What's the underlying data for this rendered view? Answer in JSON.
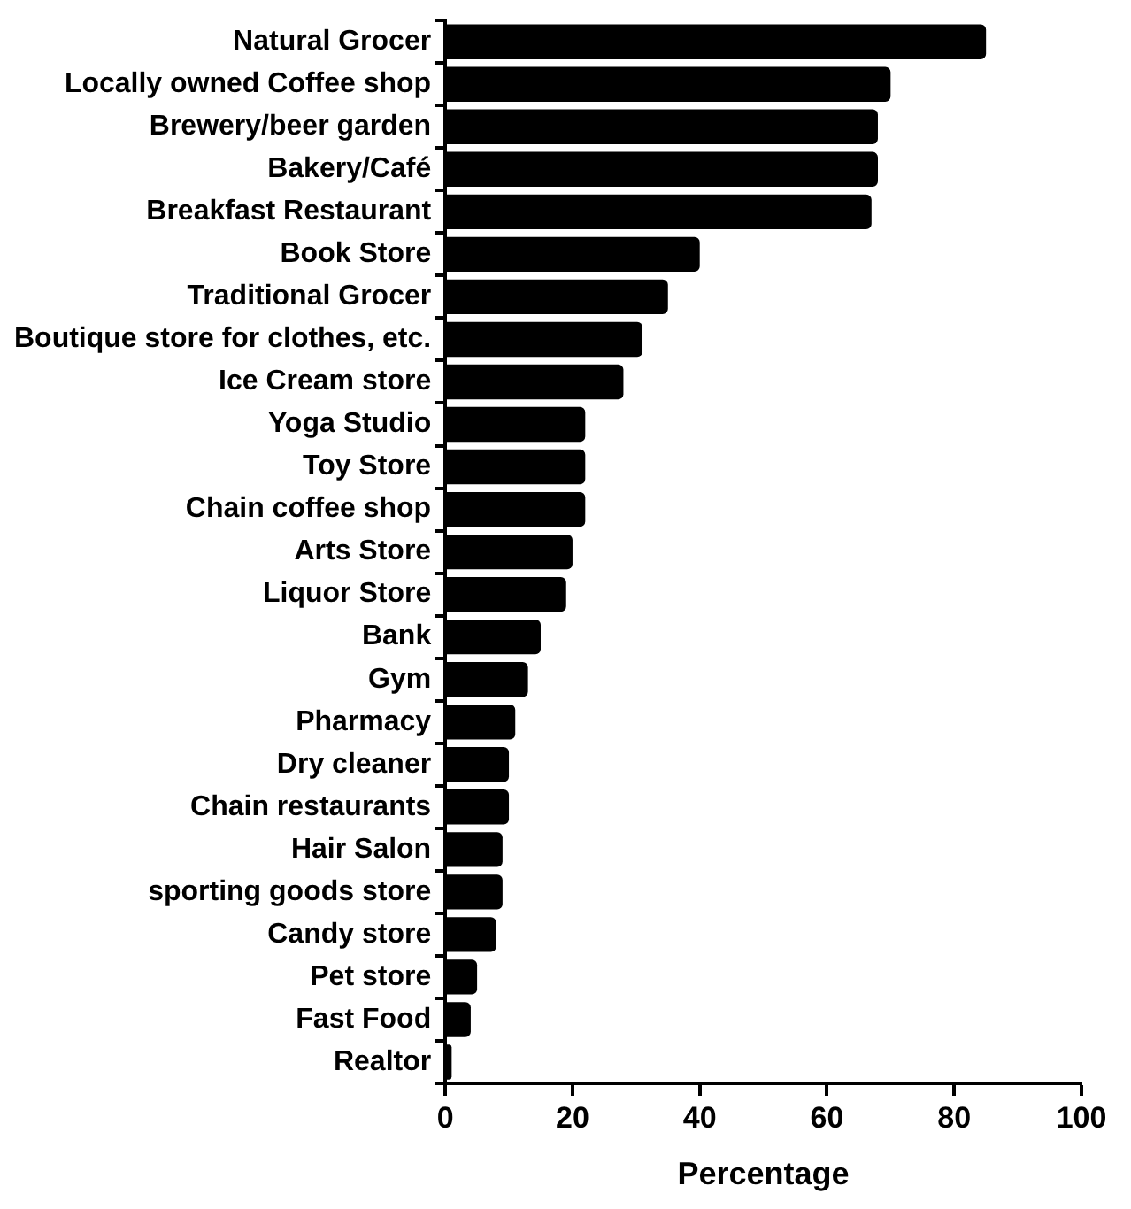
{
  "chart_data": {
    "type": "bar",
    "orientation": "horizontal",
    "xlabel": "Percentage",
    "categories": [
      "Natural Grocer",
      "Locally owned Coffee shop",
      "Brewery/beer garden",
      "Bakery/Café",
      "Breakfast Restaurant",
      "Book Store",
      "Traditional Grocer",
      "Boutique store for clothes, etc.",
      "Ice Cream store",
      "Yoga Studio",
      "Toy Store",
      "Chain coffee shop",
      "Arts Store",
      "Liquor Store",
      "Bank",
      "Gym",
      "Pharmacy",
      "Dry cleaner",
      "Chain restaurants",
      "Hair Salon",
      "sporting goods store",
      "Candy store",
      "Pet store",
      "Fast Food",
      "Realtor"
    ],
    "values": [
      85,
      70,
      68,
      68,
      67,
      40,
      35,
      31,
      28,
      22,
      22,
      22,
      20,
      19,
      15,
      13,
      11,
      10,
      10,
      9,
      9,
      8,
      5,
      4,
      1
    ],
    "color": "#000000",
    "xlim": [
      0,
      100
    ],
    "xticks": [
      0,
      20,
      40,
      60,
      80,
      100
    ],
    "grid": false,
    "legend": false
  }
}
